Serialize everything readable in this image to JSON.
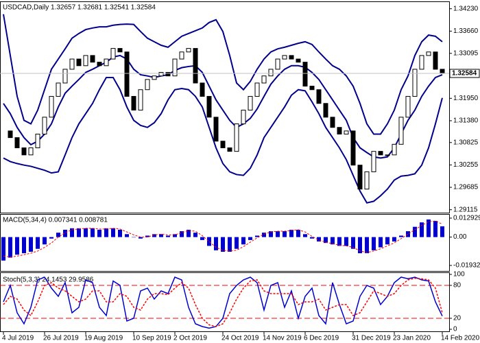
{
  "chart_data": [
    {
      "type": "candlestick",
      "title": "USDCAD,Daily 1.32657 1.32681 1.32541 1.32584",
      "categories": [
        "4 Jul 2019",
        null,
        null,
        null,
        null,
        null,
        "26 Jul 2019",
        null,
        null,
        null,
        null,
        null,
        "19 Aug 2019",
        null,
        null,
        null,
        null,
        null,
        null,
        "10 Sep 2019",
        null,
        null,
        null,
        null,
        null,
        "2 Oct 2019",
        null,
        null,
        null,
        null,
        null,
        null,
        "24 Oct 2019",
        null,
        null,
        null,
        null,
        null,
        "14 Nov 2019",
        null,
        null,
        null,
        null,
        null,
        "6 Dec 2019",
        null,
        null,
        null,
        null,
        null,
        null,
        "31 Dec 2019",
        null,
        null,
        null,
        null,
        null,
        "23 Jan 2020",
        null,
        null,
        null,
        null,
        null,
        null,
        "14 Feb 2020"
      ],
      "close": [
        1.3112,
        1.3095,
        1.3069,
        1.3051,
        1.3069,
        1.3104,
        1.3147,
        1.32,
        1.3234,
        1.3269,
        1.3295,
        1.3278,
        1.3304,
        1.3287,
        1.3278,
        1.3295,
        1.3322,
        1.3313,
        1.32,
        1.3165,
        1.3217,
        1.3243,
        1.3252,
        1.3261,
        1.3252,
        1.3295,
        1.3313,
        1.3322,
        1.3234,
        1.32,
        1.3147,
        1.3086,
        1.3069,
        1.306,
        1.313,
        1.3165,
        1.32,
        1.3234,
        1.3252,
        1.3269,
        1.3295,
        1.3304,
        1.3295,
        1.3287,
        1.3226,
        1.3217,
        1.3182,
        1.3147,
        1.3121,
        1.3104,
        1.3112,
        1.3025,
        1.2964,
        1.3008,
        1.306,
        1.3051,
        1.3051,
        1.3078,
        1.3147,
        1.32,
        1.3269,
        1.3304,
        1.3313,
        1.3269,
        1.32584
      ],
      "color": "#000000",
      "bands": [
        {
          "color": "#00008b",
          "values": [
            1.3409,
            1.3304,
            1.32,
            1.3139,
            1.313,
            1.3165,
            1.3217,
            1.3269,
            1.3295,
            1.3321,
            1.3348,
            1.336,
            1.337,
            1.3374,
            1.3377,
            1.3377,
            1.3381,
            1.3383,
            1.3384,
            1.3383,
            1.3365,
            1.3348,
            1.3339,
            1.333,
            1.3325,
            1.3339,
            1.3353,
            1.336,
            1.3367,
            1.3374,
            1.3388,
            1.3395,
            1.3365,
            1.3304,
            1.3234,
            1.3217,
            1.3238,
            1.3269,
            1.3295,
            1.3313,
            1.3321,
            1.3325,
            1.333,
            1.3335,
            1.3339,
            1.3332,
            1.3313,
            1.3295,
            1.3278,
            1.3269,
            1.3252,
            1.3226,
            1.3182,
            1.313,
            1.3104,
            1.3104,
            1.313,
            1.3165,
            1.3217,
            1.3252,
            1.3304,
            1.3339,
            1.3356,
            1.3353,
            1.3339
          ]
        },
        {
          "color": "#00008b",
          "values": [
            1.3182,
            1.3156,
            1.3121,
            1.3095,
            1.3077,
            1.3086,
            1.3104,
            1.313,
            1.3173,
            1.3208,
            1.3226,
            1.3243,
            1.3261,
            1.3269,
            1.3278,
            1.3287,
            1.33,
            1.3304,
            1.3295,
            1.3269,
            1.3255,
            1.3252,
            1.3248,
            1.3252,
            1.3255,
            1.3266,
            1.3273,
            1.3276,
            1.3278,
            1.3261,
            1.3226,
            1.3191,
            1.3165,
            1.3139,
            1.3121,
            1.313,
            1.3144,
            1.3168,
            1.32,
            1.3231,
            1.3252,
            1.3269,
            1.3278,
            1.3278,
            1.3274,
            1.3261,
            1.3243,
            1.3217,
            1.3191,
            1.3165,
            1.3139,
            1.3095,
            1.3069,
            1.3057,
            1.3046,
            1.3043,
            1.3046,
            1.3069,
            1.3104,
            1.3139,
            1.3165,
            1.32,
            1.3226,
            1.3248,
            1.3255
          ]
        },
        {
          "color": "#00008b",
          "values": [
            1.3043,
            1.3034,
            1.3029,
            1.3025,
            1.3022,
            1.3017,
            1.3012,
            1.3005,
            1.3008,
            1.3051,
            1.3095,
            1.313,
            1.3156,
            1.3182,
            1.3217,
            1.3248,
            1.3248,
            1.3217,
            1.3173,
            1.3139,
            1.3126,
            1.3121,
            1.3133,
            1.3156,
            1.3191,
            1.3217,
            1.322,
            1.3217,
            1.32,
            1.3173,
            1.3121,
            1.3069,
            1.3029,
            1.3008,
            1.3001,
            1.2999,
            1.3017,
            1.3051,
            1.3095,
            1.3121,
            1.3147,
            1.3173,
            1.3203,
            1.3217,
            1.3214,
            1.3186,
            1.3156,
            1.3121,
            1.3095,
            1.3069,
            1.3039,
            1.2999,
            1.2959,
            1.2929,
            1.2933,
            1.2947,
            1.2964,
            1.2987,
            1.2997,
            1.2999,
            1.3003,
            1.3025,
            1.3069,
            1.313,
            1.3196
          ]
        }
      ],
      "last_price": 1.32584,
      "ylim": [
        1.2904,
        1.344
      ],
      "yticks": [
        {
          "value": 1.3423,
          "label": "1.34230"
        },
        {
          "value": 1.3366,
          "label": "1.33660"
        },
        {
          "value": 1.33095,
          "label": "1.33095"
        },
        {
          "value": 1.32525,
          "label": "1.32525"
        },
        {
          "value": 1.3195,
          "label": "1.31950"
        },
        {
          "value": 1.3138,
          "label": "1.31380"
        },
        {
          "value": 1.30825,
          "label": "1.30825"
        },
        {
          "value": 1.30255,
          "label": "1.30255"
        },
        {
          "value": 1.29685,
          "label": "1.29685"
        },
        {
          "value": 1.29115,
          "label": "1.29115"
        }
      ]
    },
    {
      "type": "bar",
      "title": "MACD(5,34,4) 0.007341 0.008781",
      "values": [
        -0.016,
        -0.014,
        -0.012,
        -0.011,
        -0.01,
        -0.008,
        -0.005,
        -0.001,
        0.003,
        0.005,
        0.006,
        0.006,
        0.006,
        0.006,
        0.005,
        0.006,
        0.006,
        0.005,
        0.002,
        0.0,
        -0.001,
        0.001,
        0.002,
        0.002,
        0.001,
        0.002,
        0.004,
        0.005,
        0.003,
        -0.002,
        -0.006,
        -0.009,
        -0.01,
        -0.01,
        -0.008,
        -0.005,
        -0.002,
        0.001,
        0.003,
        0.004,
        0.004,
        0.004,
        0.005,
        0.005,
        0.002,
        -0.001,
        -0.003,
        -0.004,
        -0.005,
        -0.006,
        -0.006,
        -0.008,
        -0.011,
        -0.011,
        -0.009,
        -0.007,
        -0.005,
        -0.003,
        0.001,
        0.004,
        0.007,
        0.01,
        0.012,
        0.011,
        0.007341
      ],
      "color": "#0000cd",
      "signal": {
        "color": "#ff0000",
        "values": [
          -0.013,
          -0.0135,
          -0.013,
          -0.012,
          -0.011,
          -0.0095,
          -0.007,
          -0.004,
          0.0,
          0.003,
          0.005,
          0.0055,
          0.006,
          0.006,
          0.0055,
          0.0055,
          0.006,
          0.0055,
          0.0035,
          0.0015,
          0.0,
          0.0,
          0.0015,
          0.002,
          0.0015,
          0.0015,
          0.003,
          0.0045,
          0.004,
          0.001,
          -0.003,
          -0.007,
          -0.009,
          -0.0095,
          -0.009,
          -0.0065,
          -0.0035,
          -0.0005,
          0.002,
          0.0035,
          0.004,
          0.004,
          0.0045,
          0.005,
          0.0035,
          0.0005,
          -0.002,
          -0.0035,
          -0.0045,
          -0.0055,
          -0.006,
          -0.007,
          -0.0095,
          -0.0105,
          -0.0095,
          -0.008,
          -0.006,
          -0.004,
          -0.001,
          0.002,
          0.005,
          0.008,
          0.0105,
          0.011,
          0.008781
        ]
      },
      "ylim": [
        -0.0231,
        0.01525
      ],
      "yticks": [
        0.012929,
        {
          "value": 0,
          "label": "0.00"
        },
        -0.019321
      ]
    },
    {
      "type": "line",
      "title": "Stoch(5,3,3) 24.1453 29.9586",
      "series": [
        {
          "color": "#0000cd",
          "values": [
            50,
            80,
            30,
            10,
            40,
            90,
            95,
            75,
            60,
            85,
            30,
            40,
            90,
            85,
            40,
            25,
            88,
            80,
            15,
            20,
            70,
            75,
            55,
            70,
            65,
            95,
            90,
            40,
            10,
            5,
            2,
            5,
            20,
            65,
            80,
            90,
            95,
            85,
            35,
            80,
            85,
            40,
            70,
            20,
            60,
            75,
            25,
            10,
            85,
            45,
            10,
            15,
            60,
            80,
            75,
            45,
            60,
            85,
            95,
            92,
            95,
            90,
            88,
            50,
            24.1453
          ]
        },
        {
          "color": "#ff0000",
          "values": [
            45,
            60,
            55,
            35,
            25,
            50,
            80,
            85,
            75,
            70,
            60,
            50,
            55,
            70,
            70,
            50,
            50,
            65,
            60,
            40,
            35,
            55,
            65,
            65,
            63,
            75,
            85,
            75,
            45,
            20,
            8,
            5,
            10,
            30,
            55,
            75,
            88,
            90,
            70,
            65,
            65,
            65,
            65,
            45,
            50,
            50,
            55,
            35,
            40,
            45,
            45,
            25,
            30,
            50,
            70,
            65,
            60,
            65,
            80,
            90,
            93,
            92,
            90,
            75,
            29.9586
          ]
        }
      ],
      "levels": [
        80,
        20
      ],
      "ylim": [
        0,
        100
      ],
      "yticks": [
        100,
        80,
        20,
        0
      ]
    }
  ]
}
